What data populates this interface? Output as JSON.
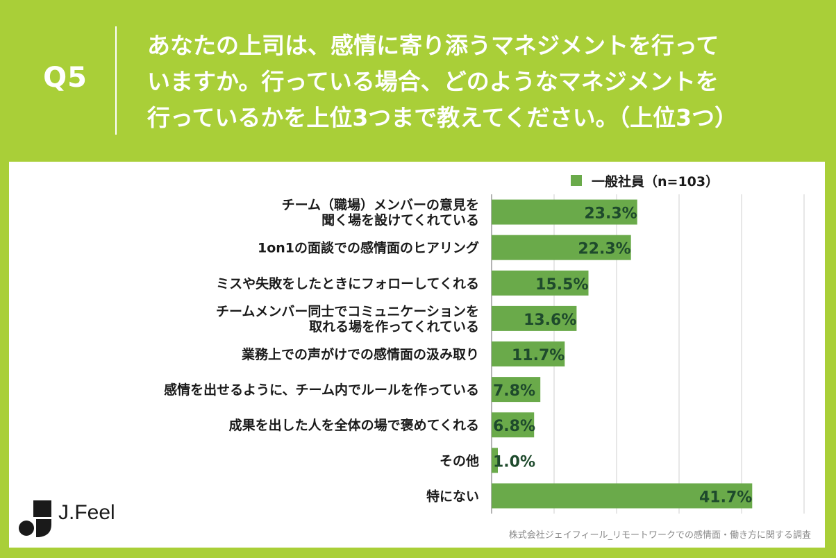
{
  "header": {
    "q_label": "Q5",
    "question_lines": [
      "あなたの上司は、感情に寄り添うマネジメントを行って",
      "いますか。行っている場合、どのようなマネジメントを",
      "行っているかを上位3つまで教えてください。（上位3つ）"
    ]
  },
  "colors": {
    "brand_green": "#a9cf38",
    "bar": "#6aaa4a",
    "value_text": "#1e4a2c",
    "panel": "#ffffff",
    "grid": "#cfcfcf"
  },
  "chart_data": {
    "type": "bar",
    "orientation": "horizontal",
    "categories": [
      [
        "チーム（職場）メンバーの意見を",
        "聞く場を設けてくれている"
      ],
      [
        "1on1の面談での感情面のヒアリング"
      ],
      [
        "ミスや失敗をしたときにフォローしてくれる"
      ],
      [
        "チームメンバー同士でコミュニケーションを",
        "取れる場を作ってくれている"
      ],
      [
        "業務上での声がけでの感情面の汲み取り"
      ],
      [
        "感情を出せるように、チーム内でルールを作っている"
      ],
      [
        "成果を出した人を全体の場で褒めてくれる"
      ],
      [
        "その他"
      ],
      [
        "特にない"
      ]
    ],
    "series": [
      {
        "name": "一般社員（n=103）",
        "values": [
          23.3,
          22.3,
          15.5,
          13.6,
          11.7,
          7.8,
          6.8,
          1.0,
          41.7
        ],
        "labels": [
          "23.3%",
          "22.3%",
          "15.5%",
          "13.6%",
          "11.7%",
          "7.8%",
          "6.8%",
          "1.0%",
          "41.7%"
        ]
      }
    ],
    "xlim": [
      0,
      50
    ],
    "grid": true,
    "legend_position": "top-right"
  },
  "footer": {
    "logo_text": "J.Feel",
    "source": "株式会社ジェイフィール_リモートワークでの感情面・働き方に関する調査"
  }
}
